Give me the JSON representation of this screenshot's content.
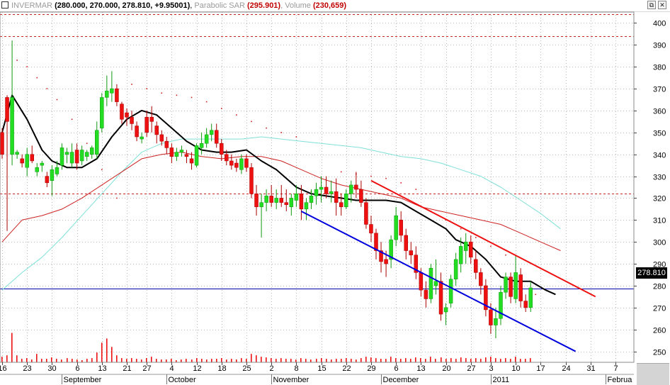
{
  "header": {
    "symbol": "INVERMAR",
    "ohlc": "(280.000, 270.000, 278.810, +9.95001)",
    "sar_label": "Parabolic SAR",
    "sar_value": "(295.901)",
    "volume_label": "Volume",
    "volume_value": "(230,659)"
  },
  "window_buttons": {
    "restore": "⧉",
    "close": "✕"
  },
  "colors": {
    "up": "#22dd22",
    "down": "#ee1111",
    "ma_black": "#000000",
    "ma_red": "#cc2222",
    "ma_cyan": "#7fe0d8",
    "trend_red": "#ee1111",
    "trend_blue": "#0000dd",
    "price_line": "#0000aa",
    "dashed_level": "#cc2222"
  },
  "chart_data": {
    "type": "candlestick",
    "ylim": [
      245,
      405
    ],
    "yticks": [
      250,
      260,
      270,
      280,
      290,
      300,
      310,
      320,
      330,
      340,
      350,
      360,
      370,
      380,
      390,
      400
    ],
    "last_price": 278.81,
    "last_price_label": "278.810",
    "dashed_levels": [
      404,
      394,
      322
    ],
    "bars": 115,
    "x_ticks": [
      {
        "bar": 0,
        "label": "16"
      },
      {
        "bar": 5,
        "label": "23"
      },
      {
        "bar": 10,
        "label": "30"
      },
      {
        "bar": 15,
        "label": "6"
      },
      {
        "bar": 20,
        "label": "13"
      },
      {
        "bar": 25,
        "label": "21"
      },
      {
        "bar": 29,
        "label": "27"
      },
      {
        "bar": 34,
        "label": "4"
      },
      {
        "bar": 39,
        "label": "12"
      },
      {
        "bar": 44,
        "label": "18"
      },
      {
        "bar": 49,
        "label": "25"
      },
      {
        "bar": 54,
        "label": "2"
      },
      {
        "bar": 59,
        "label": "8"
      },
      {
        "bar": 64,
        "label": "15"
      },
      {
        "bar": 69,
        "label": "22"
      },
      {
        "bar": 74,
        "label": "29"
      },
      {
        "bar": 79,
        "label": "6"
      },
      {
        "bar": 84,
        "label": "13"
      },
      {
        "bar": 89,
        "label": "20"
      },
      {
        "bar": 94,
        "label": "27"
      },
      {
        "bar": 98,
        "label": "3"
      },
      {
        "bar": 103,
        "label": "10"
      },
      {
        "bar": 108,
        "label": "17"
      },
      {
        "bar": 113,
        "label": "24"
      },
      {
        "bar": 118,
        "label": "31"
      },
      {
        "bar": 123,
        "label": "7"
      }
    ],
    "months": [
      {
        "bar": 12,
        "label": "September"
      },
      {
        "bar": 33,
        "label": "October"
      },
      {
        "bar": 54,
        "label": "November"
      },
      {
        "bar": 76,
        "label": "December"
      },
      {
        "bar": 98,
        "label": "2011"
      },
      {
        "bar": 121,
        "label": "Februa"
      }
    ],
    "candles": [
      [
        350,
        352,
        338,
        340
      ],
      [
        366,
        367,
        305,
        355
      ],
      [
        340,
        392,
        335,
        366
      ],
      [
        340,
        342,
        338,
        341
      ],
      [
        338,
        340,
        334,
        336
      ],
      [
        334,
        343,
        330,
        340
      ],
      [
        340,
        344,
        336,
        337
      ],
      [
        332,
        336,
        330,
        334
      ],
      [
        335,
        337,
        332,
        336
      ],
      [
        330,
        332,
        325,
        327
      ],
      [
        328,
        335,
        321,
        333
      ],
      [
        331,
        337,
        330,
        334
      ],
      [
        335,
        345,
        333,
        343
      ],
      [
        340,
        343,
        336,
        341
      ],
      [
        336,
        345,
        334,
        341
      ],
      [
        342,
        345,
        333,
        336
      ],
      [
        337,
        344,
        335,
        342
      ],
      [
        339,
        342,
        337,
        341
      ],
      [
        340,
        344,
        338,
        343
      ],
      [
        340,
        355,
        338,
        351
      ],
      [
        352,
        368,
        350,
        366
      ],
      [
        366,
        376,
        362,
        369
      ],
      [
        368,
        378,
        364,
        370
      ],
      [
        370,
        372,
        362,
        364
      ],
      [
        363,
        364,
        354,
        356
      ],
      [
        359,
        361,
        353,
        357
      ],
      [
        357,
        360,
        351,
        354
      ],
      [
        353,
        355,
        346,
        348
      ],
      [
        347,
        350,
        345,
        348
      ],
      [
        357,
        360,
        348,
        350
      ],
      [
        357,
        362,
        350,
        355
      ],
      [
        353,
        355,
        345,
        349
      ],
      [
        349,
        351,
        344,
        346
      ],
      [
        346,
        348,
        340,
        343
      ],
      [
        343,
        345,
        336,
        339
      ],
      [
        339,
        343,
        337,
        341
      ],
      [
        341,
        344,
        339,
        342
      ],
      [
        340,
        342,
        336,
        339
      ],
      [
        338,
        341,
        333,
        336
      ],
      [
        335,
        345,
        334,
        344
      ],
      [
        343,
        350,
        340,
        345
      ],
      [
        345,
        352,
        343,
        349
      ],
      [
        349,
        354,
        346,
        351
      ],
      [
        351,
        354,
        343,
        345
      ],
      [
        345,
        347,
        337,
        340
      ],
      [
        340,
        342,
        335,
        337
      ],
      [
        337,
        340,
        333,
        335
      ],
      [
        336,
        338,
        332,
        334
      ],
      [
        333,
        340,
        331,
        338
      ],
      [
        338,
        340,
        332,
        334
      ],
      [
        334,
        336,
        320,
        322
      ],
      [
        322,
        326,
        312,
        316
      ],
      [
        316,
        322,
        302,
        318
      ],
      [
        318,
        324,
        314,
        321
      ],
      [
        321,
        326,
        316,
        318
      ],
      [
        318,
        324,
        315,
        320
      ],
      [
        320,
        326,
        316,
        318
      ],
      [
        318,
        324,
        314,
        317
      ],
      [
        316,
        322,
        312,
        320
      ],
      [
        319,
        326,
        316,
        322
      ],
      [
        322,
        326,
        310,
        315
      ],
      [
        315,
        320,
        310,
        318
      ],
      [
        318,
        324,
        315,
        321
      ],
      [
        321,
        327,
        317,
        324
      ],
      [
        324,
        330,
        318,
        325
      ],
      [
        325,
        330,
        320,
        322
      ],
      [
        322,
        328,
        318,
        323
      ],
      [
        323,
        329,
        312,
        318
      ],
      [
        318,
        322,
        312,
        316
      ],
      [
        316,
        324,
        315,
        322
      ],
      [
        322,
        328,
        318,
        326
      ],
      [
        326,
        332,
        320,
        324
      ],
      [
        324,
        328,
        316,
        318
      ],
      [
        318,
        320,
        306,
        308
      ],
      [
        308,
        312,
        300,
        304
      ],
      [
        304,
        306,
        292,
        296
      ],
      [
        296,
        300,
        286,
        291
      ],
      [
        292,
        296,
        284,
        290
      ],
      [
        292,
        303,
        288,
        301
      ],
      [
        301,
        316,
        298,
        312
      ],
      [
        310,
        314,
        300,
        303
      ],
      [
        303,
        306,
        292,
        296
      ],
      [
        296,
        300,
        290,
        294
      ],
      [
        294,
        298,
        283,
        286
      ],
      [
        286,
        288,
        275,
        278
      ],
      [
        278,
        282,
        270,
        274
      ],
      [
        274,
        290,
        272,
        288
      ],
      [
        280,
        292,
        276,
        282
      ],
      [
        282,
        286,
        264,
        267
      ],
      [
        268,
        272,
        262,
        270
      ],
      [
        272,
        285,
        270,
        283
      ],
      [
        283,
        295,
        280,
        292
      ],
      [
        290,
        302,
        286,
        298
      ],
      [
        296,
        304,
        290,
        300
      ],
      [
        300,
        303,
        290,
        293
      ],
      [
        292,
        296,
        283,
        286
      ],
      [
        286,
        288,
        276,
        280
      ],
      [
        280,
        283,
        266,
        269
      ],
      [
        269,
        272,
        258,
        262
      ],
      [
        262,
        270,
        256,
        265
      ],
      [
        265,
        280,
        262,
        277
      ],
      [
        277,
        286,
        274,
        284
      ],
      [
        284,
        286,
        272,
        275
      ],
      [
        274,
        294,
        272,
        286
      ],
      [
        285,
        288,
        270,
        273
      ],
      [
        273,
        276,
        268,
        270
      ],
      [
        270,
        282,
        268,
        279
      ]
    ],
    "volumes": [
      0.08,
      0.1,
      0.42,
      0.1,
      0.05,
      0.06,
      0.04,
      0.12,
      0.05,
      0.05,
      0.07,
      0.05,
      0.04,
      0.06,
      0.05,
      0.04,
      0.03,
      0.05,
      0.06,
      0.14,
      0.28,
      0.34,
      0.22,
      0.1,
      0.06,
      0.05,
      0.06,
      0.05,
      0.04,
      0.06,
      0.08,
      0.05,
      0.04,
      0.04,
      0.05,
      0.03,
      0.04,
      0.05,
      0.04,
      0.06,
      0.05,
      0.04,
      0.05,
      0.05,
      0.06,
      0.04,
      0.05,
      0.04,
      0.06,
      0.05,
      0.12,
      0.1,
      0.08,
      0.07,
      0.06,
      0.05,
      0.06,
      0.05,
      0.05,
      0.04,
      0.06,
      0.05,
      0.04,
      0.05,
      0.06,
      0.05,
      0.04,
      0.05,
      0.05,
      0.06,
      0.05,
      0.04,
      0.06,
      0.08,
      0.07,
      0.06,
      0.05,
      0.05,
      0.08,
      0.06,
      0.05,
      0.06,
      0.05,
      0.07,
      0.06,
      0.05,
      0.08,
      0.05,
      0.07,
      0.05,
      0.06,
      0.05,
      0.07,
      0.06,
      0.05,
      0.06,
      0.05,
      0.07,
      0.08,
      0.06,
      0.05,
      0.06,
      0.05,
      0.08,
      0.05,
      0.05,
      0.06
    ],
    "ma_black": [
      [
        0,
        350
      ],
      [
        2,
        367
      ],
      [
        5,
        356
      ],
      [
        8,
        342
      ],
      [
        10,
        337
      ],
      [
        13,
        334
      ],
      [
        16,
        334
      ],
      [
        19,
        338
      ],
      [
        22,
        348
      ],
      [
        25,
        356
      ],
      [
        28,
        360
      ],
      [
        31,
        358
      ],
      [
        34,
        352
      ],
      [
        37,
        346
      ],
      [
        40,
        342
      ],
      [
        43,
        341
      ],
      [
        46,
        341
      ],
      [
        49,
        342
      ],
      [
        52,
        337
      ],
      [
        55,
        333
      ],
      [
        57,
        329
      ],
      [
        59,
        325
      ],
      [
        62,
        322
      ],
      [
        65,
        321
      ],
      [
        68,
        320
      ],
      [
        71,
        319
      ],
      [
        74,
        319
      ],
      [
        77,
        319
      ],
      [
        80,
        318
      ],
      [
        83,
        314
      ],
      [
        86,
        310
      ],
      [
        89,
        306
      ],
      [
        91,
        301
      ],
      [
        94,
        298
      ],
      [
        97,
        292
      ],
      [
        100,
        284
      ],
      [
        103,
        282
      ],
      [
        106,
        282
      ],
      [
        109,
        278
      ],
      [
        111,
        276
      ]
    ],
    "ma_red": [
      [
        0,
        300
      ],
      [
        4,
        310
      ],
      [
        8,
        312
      ],
      [
        12,
        315
      ],
      [
        16,
        320
      ],
      [
        20,
        326
      ],
      [
        24,
        332
      ],
      [
        28,
        338
      ],
      [
        32,
        340
      ],
      [
        36,
        341
      ],
      [
        40,
        339
      ],
      [
        44,
        338
      ],
      [
        48,
        339
      ],
      [
        52,
        339
      ],
      [
        56,
        337
      ],
      [
        60,
        333
      ],
      [
        64,
        329
      ],
      [
        68,
        326
      ],
      [
        72,
        324
      ],
      [
        76,
        322
      ],
      [
        80,
        320
      ],
      [
        84,
        316
      ],
      [
        88,
        314
      ],
      [
        92,
        312
      ],
      [
        96,
        310
      ],
      [
        100,
        308
      ],
      [
        104,
        304
      ],
      [
        108,
        300
      ],
      [
        112,
        296
      ]
    ],
    "ma_cyan": [
      [
        0,
        278
      ],
      [
        4,
        286
      ],
      [
        8,
        293
      ],
      [
        12,
        302
      ],
      [
        16,
        312
      ],
      [
        20,
        322
      ],
      [
        24,
        332
      ],
      [
        28,
        341
      ],
      [
        32,
        345
      ],
      [
        36,
        347
      ],
      [
        40,
        347
      ],
      [
        44,
        347
      ],
      [
        48,
        347
      ],
      [
        52,
        348
      ],
      [
        56,
        347
      ],
      [
        60,
        346
      ],
      [
        64,
        345
      ],
      [
        68,
        344
      ],
      [
        72,
        343
      ],
      [
        76,
        341
      ],
      [
        80,
        339
      ],
      [
        84,
        338
      ],
      [
        88,
        336
      ],
      [
        92,
        333
      ],
      [
        96,
        330
      ],
      [
        100,
        325
      ],
      [
        104,
        319
      ],
      [
        108,
        313
      ],
      [
        112,
        306
      ]
    ],
    "sar": [
      [
        3,
        383
      ],
      [
        5,
        380
      ],
      [
        7,
        375
      ],
      [
        9,
        370
      ],
      [
        11,
        365
      ],
      [
        14,
        356
      ],
      [
        17,
        345
      ],
      [
        20,
        333
      ],
      [
        23,
        320
      ],
      [
        26,
        372
      ],
      [
        29,
        370
      ],
      [
        32,
        368
      ],
      [
        35,
        367
      ],
      [
        38,
        366
      ],
      [
        41,
        364
      ],
      [
        44,
        361
      ],
      [
        47,
        358
      ],
      [
        50,
        355
      ],
      [
        53,
        352
      ],
      [
        56,
        350
      ],
      [
        59,
        348
      ],
      [
        62,
        323
      ],
      [
        65,
        322
      ],
      [
        68,
        332
      ],
      [
        71,
        331
      ],
      [
        74,
        330
      ],
      [
        77,
        329
      ],
      [
        80,
        327
      ],
      [
        83,
        324
      ],
      [
        86,
        314
      ],
      [
        89,
        310
      ],
      [
        92,
        306
      ],
      [
        95,
        302
      ],
      [
        98,
        298
      ],
      [
        101,
        294
      ],
      [
        104,
        278
      ],
      [
        107,
        276
      ]
    ],
    "trend_red": [
      [
        74,
        328
      ],
      [
        119,
        275
      ]
    ],
    "trend_blue": [
      [
        60,
        314
      ],
      [
        115,
        250
      ]
    ]
  }
}
